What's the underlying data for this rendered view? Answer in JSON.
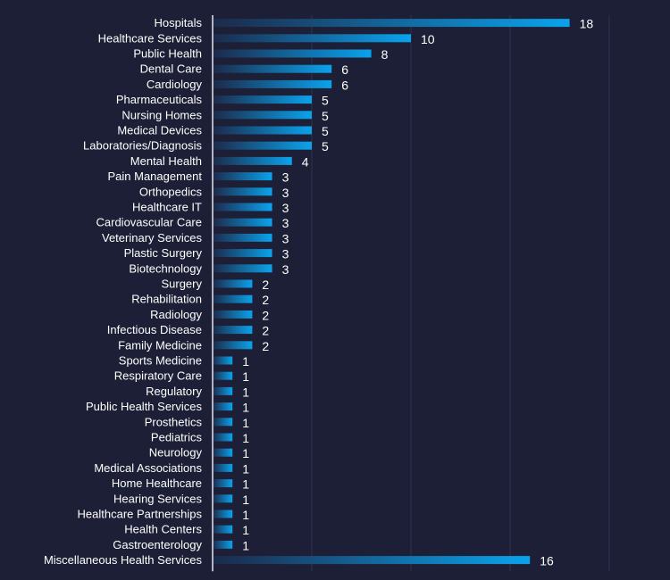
{
  "chart_data": {
    "type": "bar",
    "orientation": "horizontal",
    "title": "",
    "xlabel": "",
    "ylabel": "",
    "xlim": [
      0,
      20
    ],
    "grid": true,
    "legend": "none",
    "colors": {
      "background": "#1c1f36",
      "bar_start": "#1c2a4a",
      "bar_end": "#0aa3ec",
      "grid": "#2e3352",
      "axis": "#e6e6ee",
      "text": "#ffffff"
    },
    "categories": [
      "Hospitals",
      "Healthcare Services",
      "Public Health",
      "Dental Care",
      "Cardiology",
      "Pharmaceuticals",
      "Nursing Homes",
      "Medical Devices",
      "Laboratories/Diagnosis",
      "Mental Health",
      "Pain Management",
      "Orthopedics",
      "Healthcare IT",
      "Cardiovascular Care",
      "Veterinary Services",
      "Plastic Surgery",
      "Biotechnology",
      "Surgery",
      "Rehabilitation",
      "Radiology",
      "Infectious Disease",
      "Family Medicine",
      "Sports Medicine",
      "Respiratory Care",
      "Regulatory",
      "Public Health Services",
      "Prosthetics",
      "Pediatrics",
      "Neurology",
      "Medical Associations",
      "Home Healthcare",
      "Hearing Services",
      "Healthcare Partnerships",
      "Health Centers",
      "Gastroenterology",
      "Miscellaneous Health Services"
    ],
    "values": [
      18,
      10,
      8,
      6,
      6,
      5,
      5,
      5,
      5,
      4,
      3,
      3,
      3,
      3,
      3,
      3,
      3,
      2,
      2,
      2,
      2,
      2,
      1,
      1,
      1,
      1,
      1,
      1,
      1,
      1,
      1,
      1,
      1,
      1,
      1,
      16
    ]
  }
}
